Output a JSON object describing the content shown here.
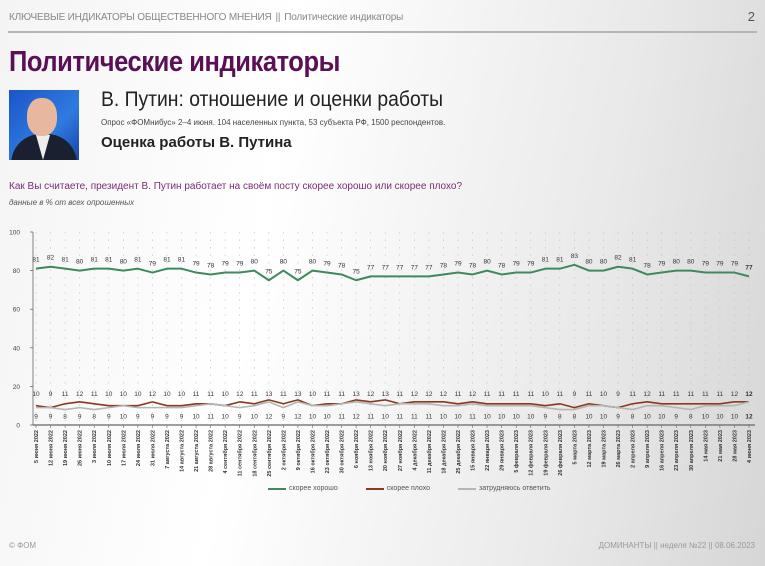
{
  "header": {
    "section": "КЛЮЧЕВЫЕ ИНДИКАТОРЫ ОБЩЕСТВЕННОГО МНЕНИЯ",
    "separator": "||",
    "subsection": "Политические индикаторы",
    "page_number": "2"
  },
  "title": "Политические индикаторы",
  "subtitle": "В. Путин: отношение и оценки работы",
  "survey_info": "Опрос «ФОМнибус» 2–4 июня. 104 населенных пункта, 53 субъекта РФ, 1500 респондентов.",
  "section_title": "Оценка работы В. Путина",
  "question": "Как Вы считаете, президент В. Путин работает на своём посту скорее хорошо или скорее плохо?",
  "note": "данные в % от всех опрошенных",
  "footer": {
    "copyright": "© ФОМ",
    "info": "ДОМИНАНТЫ || неделя №22 || 08.06.2023"
  },
  "chart_data": {
    "type": "line",
    "title": "",
    "xlabel": "",
    "ylabel": "",
    "ylim": [
      0,
      100
    ],
    "yticks": [
      "0",
      "20",
      "40",
      "60",
      "80",
      "100"
    ],
    "grid": "dotted vertical",
    "legend_position": "bottom-center",
    "categories": [
      "5 июня 2022",
      "12 июня 2022",
      "19 июня 2022",
      "26 июня 2022",
      "3 июля 2022",
      "10 июля 2022",
      "17 июля 2022",
      "24 июля 2022",
      "31 июля 2022",
      "7 августа 2022",
      "14 августа 2022",
      "21 августа 2022",
      "28 августа 2022",
      "4 сентября 2022",
      "11 сентября 2022",
      "18 сентября 2022",
      "25 сентября 2022",
      "2 октября 2022",
      "9 октября 2022",
      "16 октября 2022",
      "23 октября 2022",
      "30 октября 2022",
      "6 ноября 2022",
      "13 ноября 2022",
      "20 ноября 2022",
      "27 ноября 2022",
      "4 декабря 2022",
      "11 декабря 2022",
      "18 декабря 2022",
      "25 декабря 2022",
      "15 января 2023",
      "22 января 2023",
      "29 января 2023",
      "5 февраля 2023",
      "12 февраля 2023",
      "19 февраля 2023",
      "26 февраля 2023",
      "5 марта 2023",
      "12 марта 2023",
      "19 марта 2023",
      "26 марта 2023",
      "2 апреля 2023",
      "9 апреля 2023",
      "16 апреля 2023",
      "23 апреля 2023",
      "30 апреля 2023",
      "14 мая 2023",
      "21 мая 2023",
      "28 мая 2023",
      "4 июня 2023"
    ],
    "series": [
      {
        "name": "скорее хорошо",
        "color": "#3d8a5a",
        "values": [
          81,
          82,
          81,
          80,
          81,
          81,
          80,
          81,
          79,
          81,
          81,
          79,
          78,
          79,
          79,
          80,
          75,
          80,
          75,
          80,
          79,
          78,
          75,
          77,
          77,
          77,
          77,
          77,
          78,
          79,
          78,
          80,
          78,
          79,
          79,
          81,
          81,
          83,
          80,
          80,
          82,
          81,
          78,
          79,
          80,
          80,
          79,
          79,
          79,
          77
        ]
      },
      {
        "name": "скорее плохо",
        "color": "#8a3a1c",
        "values": [
          10,
          9,
          11,
          12,
          11,
          10,
          10,
          10,
          12,
          10,
          10,
          11,
          11,
          10,
          12,
          11,
          13,
          11,
          13,
          10,
          11,
          11,
          13,
          12,
          13,
          11,
          12,
          12,
          12,
          11,
          12,
          11,
          11,
          11,
          11,
          10,
          11,
          9,
          11,
          10,
          9,
          11,
          12,
          11,
          11,
          11,
          11,
          11,
          12,
          12
        ]
      },
      {
        "name": "затрудняюсь ответить",
        "color": "#b5b5b5",
        "values": [
          9,
          9,
          8,
          9,
          8,
          9,
          10,
          9,
          9,
          9,
          9,
          10,
          11,
          10,
          9,
          10,
          12,
          9,
          12,
          10,
          10,
          11,
          12,
          11,
          10,
          11,
          11,
          11,
          10,
          10,
          11,
          10,
          10,
          10,
          10,
          9,
          8,
          8,
          10,
          10,
          9,
          8,
          10,
          10,
          9,
          8,
          10,
          10,
          10,
          12
        ]
      }
    ]
  }
}
